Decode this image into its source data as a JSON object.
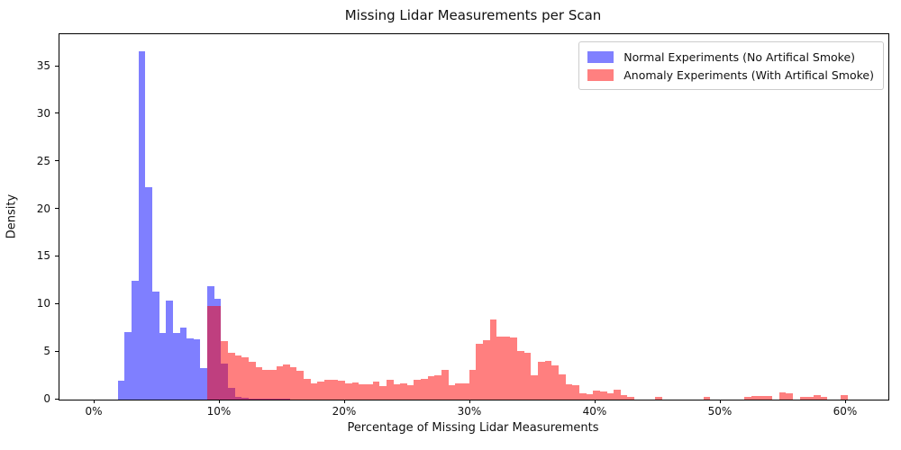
{
  "title": "Missing Lidar Measurements per Scan",
  "legend": {
    "items": [
      {
        "label": "Normal Experiments (No Artifical Smoke)",
        "color": "#8080FF"
      },
      {
        "label": "Anomaly Experiments (With Artifical Smoke)",
        "color": "#FF8080"
      }
    ]
  },
  "chart_data": {
    "type": "bar",
    "subtype": "overlapping-histograms",
    "title": "Missing Lidar Measurements per Scan",
    "xlabel": "Percentage of Missing Lidar Measurements",
    "ylabel": "Density",
    "x_tick_labels": [
      "0%",
      "10%",
      "20%",
      "30%",
      "40%",
      "50%",
      "60%"
    ],
    "x_tick_values": [
      0,
      10,
      20,
      30,
      40,
      50,
      60
    ],
    "y_tick_values": [
      0,
      5,
      10,
      15,
      20,
      25,
      30,
      35
    ],
    "xlim": [
      -2.8,
      63.4
    ],
    "ylim": [
      0,
      38.4
    ],
    "grid": false,
    "legend_position": "upper right",
    "bin_width_pct": 0.55,
    "colors": {
      "normal_fill": "#0000FF",
      "anomaly_fill": "#FF0000",
      "alpha": 0.5,
      "normal_on_white": "#8080FF",
      "anomaly_on_white": "#FF8080",
      "overlap": "#BF4080",
      "spine": "#000000",
      "legend_border": "#CCCCCC"
    },
    "series": [
      {
        "name": "Normal Experiments (No Artifical Smoke)",
        "css_color": "rgba(0,0,255,0.5)",
        "bins_x_height": [
          [
            1.85,
            2.0
          ],
          [
            2.4,
            7.1
          ],
          [
            2.95,
            12.45
          ],
          [
            3.5,
            36.6
          ],
          [
            4.05,
            22.3
          ],
          [
            4.6,
            11.35
          ],
          [
            5.15,
            7.0
          ],
          [
            5.7,
            10.4
          ],
          [
            6.25,
            7.0
          ],
          [
            6.8,
            7.6
          ],
          [
            7.35,
            6.45
          ],
          [
            7.9,
            6.35
          ],
          [
            8.45,
            3.3
          ],
          [
            9.0,
            11.9
          ],
          [
            9.55,
            10.55
          ],
          [
            10.1,
            3.8
          ],
          [
            10.65,
            1.2
          ],
          [
            11.2,
            0.3
          ],
          [
            11.75,
            0.15
          ],
          [
            12.3,
            0.12
          ],
          [
            12.85,
            0.1
          ],
          [
            13.4,
            0.1
          ],
          [
            13.95,
            0.08
          ],
          [
            14.5,
            0.08
          ],
          [
            15.05,
            0.06
          ]
        ]
      },
      {
        "name": "Anomaly Experiments (With Artifical Smoke)",
        "css_color": "rgba(255,0,0,0.5)",
        "bins_x_height": [
          [
            9.0,
            9.85
          ],
          [
            9.55,
            9.85
          ],
          [
            10.1,
            6.15
          ],
          [
            10.65,
            4.88
          ],
          [
            11.2,
            4.63
          ],
          [
            11.75,
            4.41
          ],
          [
            12.3,
            3.94
          ],
          [
            12.85,
            3.37
          ],
          [
            13.4,
            3.15
          ],
          [
            13.95,
            3.15
          ],
          [
            14.5,
            3.53
          ],
          [
            15.05,
            3.72
          ],
          [
            15.6,
            3.4
          ],
          [
            16.15,
            3.0
          ],
          [
            16.7,
            2.2
          ],
          [
            17.25,
            1.73
          ],
          [
            17.8,
            1.89
          ],
          [
            18.35,
            2.04
          ],
          [
            18.9,
            2.04
          ],
          [
            19.45,
            1.95
          ],
          [
            20.0,
            1.73
          ],
          [
            20.55,
            1.82
          ],
          [
            21.1,
            1.58
          ],
          [
            21.65,
            1.64
          ],
          [
            22.2,
            1.89
          ],
          [
            22.75,
            1.42
          ],
          [
            23.3,
            2.04
          ],
          [
            23.85,
            1.58
          ],
          [
            24.4,
            1.74
          ],
          [
            24.95,
            1.52
          ],
          [
            25.5,
            2.05
          ],
          [
            26.05,
            2.2
          ],
          [
            26.6,
            2.42
          ],
          [
            27.15,
            2.52
          ],
          [
            27.7,
            3.15
          ],
          [
            28.25,
            1.5
          ],
          [
            28.8,
            1.74
          ],
          [
            29.35,
            1.74
          ],
          [
            29.9,
            3.15
          ],
          [
            30.45,
            5.9
          ],
          [
            31.0,
            6.24
          ],
          [
            31.55,
            8.45
          ],
          [
            32.1,
            6.62
          ],
          [
            32.65,
            6.6
          ],
          [
            33.2,
            6.5
          ],
          [
            33.75,
            5.1
          ],
          [
            34.3,
            4.9
          ],
          [
            34.85,
            2.6
          ],
          [
            35.4,
            3.94
          ],
          [
            35.95,
            4.04
          ],
          [
            36.5,
            3.63
          ],
          [
            37.05,
            2.68
          ],
          [
            37.6,
            1.57
          ],
          [
            38.15,
            1.5
          ],
          [
            38.7,
            0.7
          ],
          [
            39.25,
            0.55
          ],
          [
            39.8,
            0.95
          ],
          [
            40.35,
            0.85
          ],
          [
            40.9,
            0.63
          ],
          [
            41.45,
            1.04
          ],
          [
            42.0,
            0.47
          ],
          [
            42.55,
            0.25
          ],
          [
            44.75,
            0.25
          ],
          [
            48.6,
            0.25
          ],
          [
            51.9,
            0.3
          ],
          [
            52.45,
            0.4
          ],
          [
            53.0,
            0.4
          ],
          [
            53.55,
            0.35
          ],
          [
            54.65,
            0.8
          ],
          [
            55.2,
            0.7
          ],
          [
            56.3,
            0.25
          ],
          [
            56.85,
            0.3
          ],
          [
            57.4,
            0.45
          ],
          [
            57.95,
            0.25
          ],
          [
            59.6,
            0.5
          ]
        ]
      }
    ]
  }
}
